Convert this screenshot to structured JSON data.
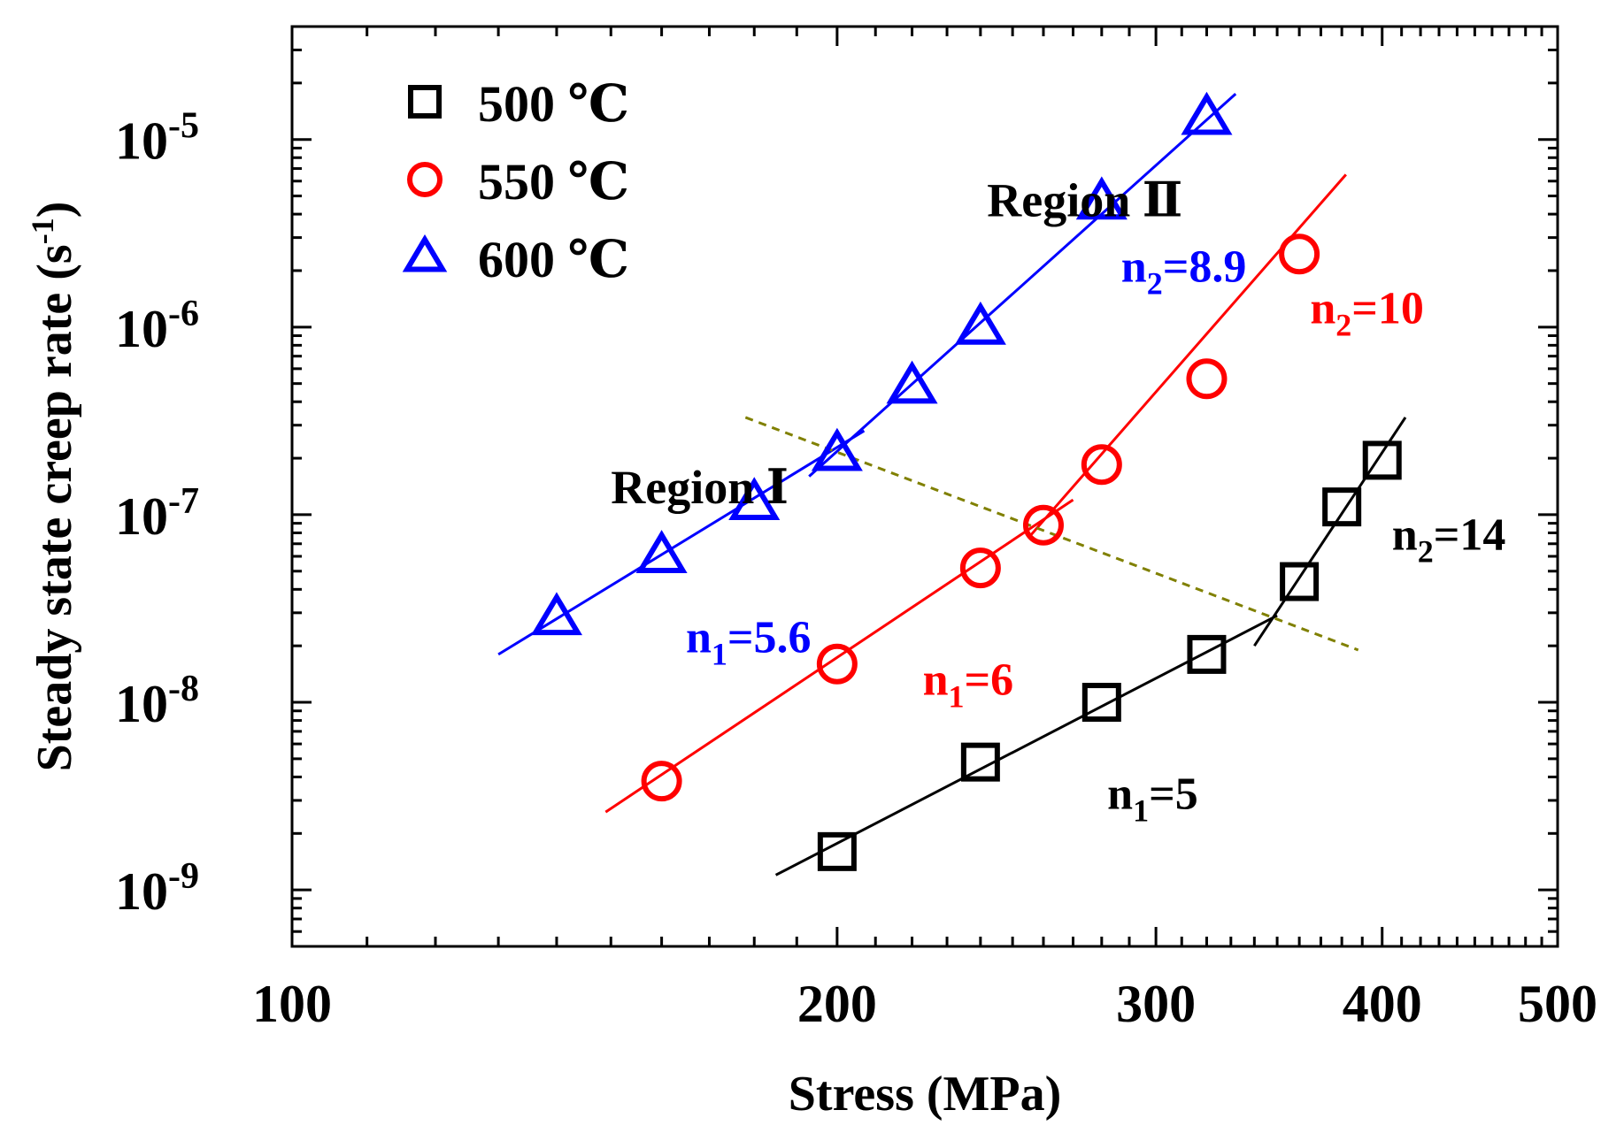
{
  "chart_data": {
    "type": "scatter",
    "x_scale": "log",
    "y_scale": "log",
    "xlabel": "Stress (MPa)",
    "ylabel": "Steady state creep rate (s",
    "ylabel_sup": "-1",
    "ylabel_close": ")",
    "xlim": [
      100,
      500
    ],
    "ylim": [
      5e-10,
      4e-05
    ],
    "x_ticks": [
      {
        "value": 100,
        "label": "100"
      },
      {
        "value": 200,
        "label": "200"
      },
      {
        "value": 300,
        "label": "300"
      },
      {
        "value": 400,
        "label": "400"
      },
      {
        "value": 500,
        "label": "500"
      }
    ],
    "y_ticks": [
      {
        "value": 1e-09,
        "base": "10",
        "exp": "-9"
      },
      {
        "value": 1e-08,
        "base": "10",
        "exp": "-8"
      },
      {
        "value": 1e-07,
        "base": "10",
        "exp": "-7"
      },
      {
        "value": 1e-06,
        "base": "10",
        "exp": "-6"
      },
      {
        "value": 1e-05,
        "base": "10",
        "exp": "-5"
      }
    ],
    "series": [
      {
        "name": "500 ℃",
        "marker": "square",
        "color": "#000000",
        "x": [
          200,
          240,
          280,
          320,
          360,
          380,
          400
        ],
        "y": [
          1.6e-09,
          4.8e-09,
          1e-08,
          1.8e-08,
          4.4e-08,
          1.1e-07,
          1.95e-07
        ],
        "fits": [
          {
            "x": [
              185,
              350
            ],
            "y": [
              1.2e-09,
              2.9e-08
            ]
          },
          {
            "x": [
              340,
              412
            ],
            "y": [
              2e-08,
              3.3e-07
            ]
          }
        ]
      },
      {
        "name": "550 ℃",
        "marker": "circle",
        "color": "#ff0000",
        "x": [
          160,
          200,
          240,
          260,
          280,
          320,
          360
        ],
        "y": [
          3.8e-09,
          1.6e-08,
          5.2e-08,
          8.8e-08,
          1.85e-07,
          5.3e-07,
          2.45e-06
        ],
        "fits": [
          {
            "x": [
              149,
              270
            ],
            "y": [
              2.6e-09,
              1.2e-07
            ]
          },
          {
            "x": [
              255,
              382
            ],
            "y": [
              7.5e-08,
              6.5e-06
            ]
          }
        ]
      },
      {
        "name": "600 ℃",
        "marker": "triangle",
        "color": "#0000ff",
        "x": [
          140,
          160,
          180,
          200,
          220,
          240,
          280,
          320
        ],
        "y": [
          2.8e-08,
          6e-08,
          1.15e-07,
          2.1e-07,
          4.8e-07,
          9.9e-07,
          4.6e-06,
          1.3e-05
        ],
        "fits": [
          {
            "x": [
              130,
              207
            ],
            "y": [
              1.8e-08,
              2.8e-07
            ]
          },
          {
            "x": [
              193,
              332
            ],
            "y": [
              1.6e-07,
              1.75e-05
            ]
          }
        ]
      }
    ],
    "boundary": {
      "x": [
        178,
        388
      ],
      "y": [
        3.3e-07,
        1.9e-08
      ],
      "color": "#808000",
      "style": "dashed"
    },
    "legend": {
      "position": "top-left",
      "entries": [
        "500 ℃",
        "550 ℃",
        "600 ℃"
      ]
    },
    "annotations": [
      {
        "id": "region-1",
        "text": "Region Ⅰ",
        "color": "#000000",
        "x": 150,
        "y": 1.15e-07
      },
      {
        "id": "region-2",
        "text": "Region Ⅱ",
        "color": "#000000",
        "x": 242,
        "y": 3.9e-06
      },
      {
        "id": "n1-600",
        "base": "n",
        "sub": "1",
        "rest": "=5.6",
        "color": "#0000ff",
        "x": 165,
        "y": 1.85e-08
      },
      {
        "id": "n2-600",
        "base": "n",
        "sub": "2",
        "rest": "=8.9",
        "color": "#0000ff",
        "x": 287,
        "y": 1.75e-06
      },
      {
        "id": "n1-550",
        "base": "n",
        "sub": "1",
        "rest": "=6",
        "color": "#ff0000",
        "x": 223,
        "y": 1.1e-08
      },
      {
        "id": "n2-550",
        "base": "n",
        "sub": "2",
        "rest": "=10",
        "color": "#ff0000",
        "x": 365,
        "y": 1.05e-06
      },
      {
        "id": "n1-500",
        "base": "n",
        "sub": "1",
        "rest": "=5",
        "color": "#000000",
        "x": 282,
        "y": 2.7e-09
      },
      {
        "id": "n2-500",
        "base": "n",
        "sub": "2",
        "rest": "=14",
        "color": "#000000",
        "x": 405,
        "y": 6.5e-08
      }
    ]
  }
}
